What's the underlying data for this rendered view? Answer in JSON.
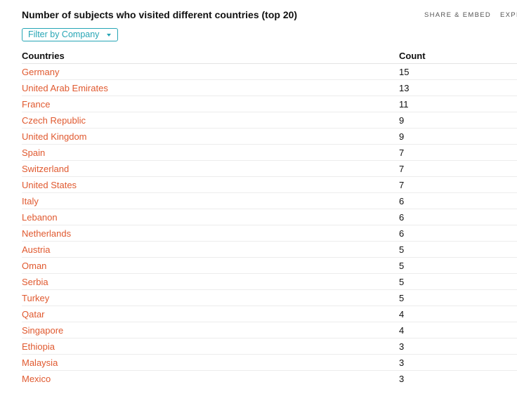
{
  "header": {
    "title": "Number of subjects who visited different countries (top 20)",
    "share_label": "SHARE & EMBED",
    "explore_label": "EXPLO"
  },
  "filter": {
    "label": "Filter by Company"
  },
  "table": {
    "columns": [
      "Countries",
      "Count"
    ],
    "rows": [
      {
        "country": "Germany",
        "count": "15"
      },
      {
        "country": "United Arab Emirates",
        "count": "13"
      },
      {
        "country": "France",
        "count": "11"
      },
      {
        "country": "Czech Republic",
        "count": "9"
      },
      {
        "country": "United Kingdom",
        "count": "9"
      },
      {
        "country": "Spain",
        "count": "7"
      },
      {
        "country": "Switzerland",
        "count": "7"
      },
      {
        "country": "United States",
        "count": "7"
      },
      {
        "country": "Italy",
        "count": "6"
      },
      {
        "country": "Lebanon",
        "count": "6"
      },
      {
        "country": "Netherlands",
        "count": "6"
      },
      {
        "country": "Austria",
        "count": "5"
      },
      {
        "country": "Oman",
        "count": "5"
      },
      {
        "country": "Serbia",
        "count": "5"
      },
      {
        "country": "Turkey",
        "count": "5"
      },
      {
        "country": "Qatar",
        "count": "4"
      },
      {
        "country": "Singapore",
        "count": "4"
      },
      {
        "country": "Ethiopia",
        "count": "3"
      },
      {
        "country": "Malaysia",
        "count": "3"
      },
      {
        "country": "Mexico",
        "count": "3"
      }
    ]
  },
  "colors": {
    "link": "#e0592f",
    "accent": "#26a5b5",
    "text": "#111111"
  }
}
